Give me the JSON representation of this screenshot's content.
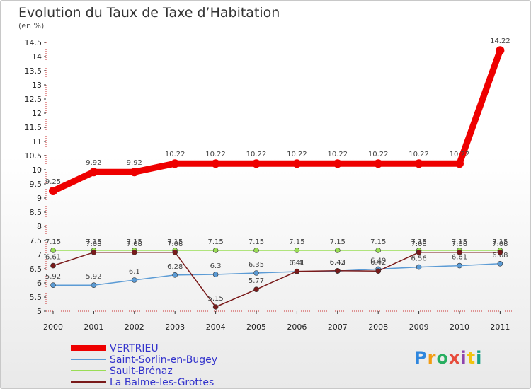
{
  "chart_data": {
    "type": "line",
    "title": "Evolution du Taux de Taxe d’Habitation",
    "subtitle": "(en %)",
    "x": [
      "2000",
      "2001",
      "2002",
      "2003",
      "2004",
      "2005",
      "2006",
      "2007",
      "2008",
      "2009",
      "2010",
      "2011"
    ],
    "ylim": [
      5,
      14.5
    ],
    "yticks": [
      "5",
      "5.5",
      "6",
      "6.5",
      "7",
      "7.5",
      "8",
      "8.5",
      "9",
      "9.5",
      "10",
      "10.5",
      "11",
      "11.5",
      "12",
      "12.5",
      "13",
      "13.5",
      "14",
      "14.5"
    ],
    "grid": false,
    "legend_position": "bottom-left",
    "series": [
      {
        "name": "VERTRIEU",
        "color": "#ee0000",
        "values": [
          9.25,
          9.92,
          9.92,
          10.22,
          10.22,
          10.22,
          10.22,
          10.22,
          10.22,
          10.22,
          10.22,
          14.22
        ],
        "labels": [
          "9.25",
          "9.92",
          "9.92",
          "10.22",
          "10.22",
          "10.22",
          "10.22",
          "10.22",
          "10.22",
          "10.22",
          "10.22",
          "14.22"
        ]
      },
      {
        "name": "Saint-Sorlin-en-Bugey",
        "color": "#5b9bd5",
        "values": [
          5.92,
          5.92,
          6.1,
          6.28,
          6.3,
          6.35,
          6.4,
          6.42,
          6.49,
          6.56,
          6.61,
          6.68
        ],
        "labels": [
          "5.92",
          "5.92",
          "6.1",
          "6.28",
          "6.3",
          "6.35",
          "6.4",
          "6.42",
          "6.49",
          "6.56",
          "6.61",
          "6.68"
        ]
      },
      {
        "name": "Sault-Brénaz",
        "color": "#99dd55",
        "values": [
          7.15,
          7.15,
          7.15,
          7.15,
          7.15,
          7.15,
          7.15,
          7.15,
          7.15,
          7.15,
          7.15,
          7.15
        ],
        "labels": [
          "7.15",
          "7.15",
          "7.15",
          "7.15",
          "7.15",
          "7.15",
          "7.15",
          "7.15",
          "7.15",
          "7.15",
          "7.15",
          "7.15"
        ]
      },
      {
        "name": "La Balme-les-Grottes",
        "color": "#7a1a1a",
        "values": [
          6.61,
          7.08,
          7.08,
          7.08,
          5.15,
          5.77,
          6.41,
          6.43,
          6.42,
          7.08,
          7.08,
          7.08
        ],
        "labels": [
          "6.61",
          "7.08",
          "7.08",
          "7.08",
          "5.15",
          "5.77",
          "6.41",
          "6.43",
          "6.42",
          "7.08",
          "7.08",
          "7.08"
        ]
      }
    ]
  },
  "legend": [
    {
      "label": "VERTRIEU",
      "color": "#ee0000"
    },
    {
      "label": "Saint-Sorlin-en-Bugey",
      "color": "#5b9bd5"
    },
    {
      "label": "Sault-Brénaz",
      "color": "#99dd55"
    },
    {
      "label": "La Balme-les-Grottes",
      "color": "#7a1a1a"
    }
  ],
  "logo": {
    "text": "Proxiti",
    "letters": [
      "P",
      "r",
      "o",
      "x",
      "i",
      "t",
      "i"
    ],
    "colors": [
      "#2e86de",
      "#f39c12",
      "#27ae60",
      "#e74c3c",
      "#8e44ad",
      "#f1c40f",
      "#16a085"
    ]
  }
}
